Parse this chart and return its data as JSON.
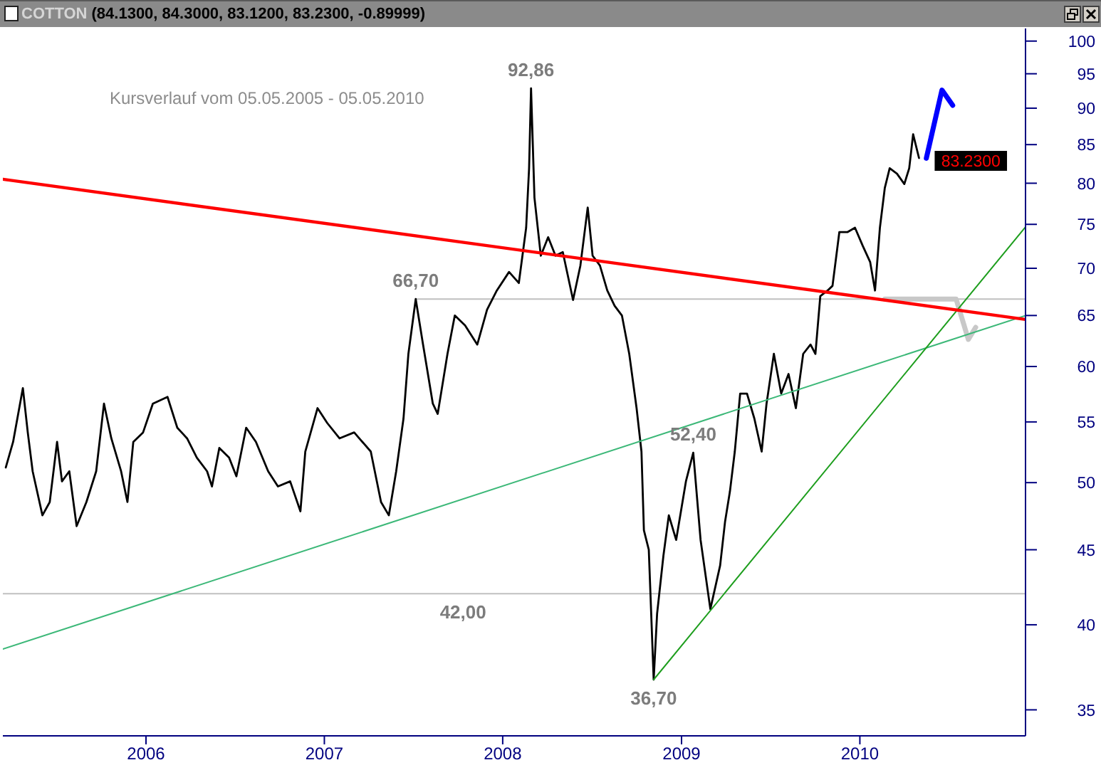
{
  "chart_data": {
    "type": "line",
    "title": "COTTON",
    "subtitle": "(84.1300, 84.3000, 83.1200, 83.2300, -0.89999)",
    "xlim": [
      "2005-03-14",
      "2010-12-06"
    ],
    "xticks": [
      {
        "value": "2006-01-01",
        "label": "2006"
      },
      {
        "value": "2007-01-01",
        "label": "2007"
      },
      {
        "value": "2008-01-01",
        "label": "2008"
      },
      {
        "value": "2009-01-01",
        "label": "2009"
      },
      {
        "value": "2010-01-01",
        "label": "2010"
      }
    ],
    "ylim": [
      33.6,
      102
    ],
    "yticks": [
      35,
      40,
      45,
      50,
      55,
      60,
      65,
      70,
      75,
      80,
      85,
      90,
      95,
      100
    ],
    "log": true,
    "series": [
      {
        "color": "#c0c0c0",
        "x": [
          "2007-07-07",
          "2010-12-06"
        ],
        "values": [
          66.7,
          66.7
        ]
      },
      {
        "color": "#c8c8c8",
        "x": [
          "2010-02-21",
          "2010-07-17",
          "2010-08-11",
          "2010-08-26"
        ],
        "values": [
          66.7,
          66.7,
          62.6,
          63.8
        ]
      },
      {
        "color": "#000000",
        "x": [
          "2005-03-20",
          "2005-04-04",
          "2005-04-24",
          "2005-05-04",
          "2005-05-14",
          "2005-06-03",
          "2005-06-18",
          "2005-07-03",
          "2005-07-13",
          "2005-07-28",
          "2005-08-12",
          "2005-09-01",
          "2005-09-21",
          "2005-10-07",
          "2005-10-22",
          "2005-11-11",
          "2005-11-24",
          "2005-12-06",
          "2005-12-26",
          "2006-01-15",
          "2006-02-14",
          "2006-03-06",
          "2006-03-26",
          "2006-04-15",
          "2006-05-06",
          "2006-05-16",
          "2006-05-31",
          "2006-06-20",
          "2006-07-05",
          "2006-07-25",
          "2006-08-14",
          "2006-09-08",
          "2006-09-28",
          "2006-10-23",
          "2006-11-13",
          "2006-11-23",
          "2006-12-18",
          "2007-01-07",
          "2007-02-01",
          "2007-03-03",
          "2007-04-06",
          "2007-04-27",
          "2007-05-13",
          "2007-05-28",
          "2007-06-12",
          "2007-06-22",
          "2007-07-07",
          "2007-07-22",
          "2007-08-11",
          "2007-08-21",
          "2007-09-10",
          "2007-09-25",
          "2007-10-16",
          "2007-11-10",
          "2007-11-30",
          "2007-12-20",
          "2008-01-14",
          "2008-02-03",
          "2008-02-18",
          "2008-02-24",
          "2008-02-28",
          "2008-03-06",
          "2008-03-19",
          "2008-04-03",
          "2008-04-18",
          "2008-05-03",
          "2008-05-24",
          "2008-06-08",
          "2008-06-23",
          "2008-07-03",
          "2008-07-18",
          "2008-08-02",
          "2008-08-17",
          "2008-09-01",
          "2008-09-16",
          "2008-10-01",
          "2008-10-11",
          "2008-10-16",
          "2008-10-26",
          "2008-11-05",
          "2008-11-12",
          "2008-11-25",
          "2008-12-06",
          "2008-12-21",
          "2009-01-10",
          "2009-01-25",
          "2009-02-09",
          "2009-03-01",
          "2009-03-21",
          "2009-03-31",
          "2009-04-10",
          "2009-04-20",
          "2009-05-01",
          "2009-05-15",
          "2009-05-30",
          "2009-06-14",
          "2009-06-24",
          "2009-07-09",
          "2009-07-24",
          "2009-08-08",
          "2009-08-23",
          "2009-09-07",
          "2009-09-22",
          "2009-10-02",
          "2009-10-12",
          "2009-10-27",
          "2009-11-06",
          "2009-11-20",
          "2009-12-07",
          "2009-12-22",
          "2010-01-07",
          "2010-01-22",
          "2010-02-01",
          "2010-02-11",
          "2010-02-21",
          "2010-03-03",
          "2010-03-18",
          "2010-04-02",
          "2010-04-12",
          "2010-04-20",
          "2010-05-02"
        ],
        "values": [
          51.2,
          53.3,
          58,
          54.1,
          50.9,
          47.5,
          48.5,
          53.3,
          50.1,
          50.9,
          46.7,
          48.5,
          50.9,
          56.6,
          53.6,
          50.9,
          48.5,
          53.3,
          54.1,
          56.6,
          57.2,
          54.5,
          53.6,
          52,
          50.9,
          49.7,
          52.8,
          52,
          50.5,
          54.5,
          53.3,
          50.9,
          49.7,
          50.1,
          47.8,
          52.5,
          56.2,
          54.9,
          53.6,
          54.1,
          52.5,
          48.5,
          47.5,
          50.9,
          55.3,
          61.2,
          66.7,
          62.1,
          56.6,
          55.7,
          61.2,
          65,
          64,
          62.1,
          65.6,
          67.6,
          69.6,
          68.4,
          74.6,
          81.9,
          92.86,
          78.2,
          71.4,
          73.5,
          71.4,
          71.8,
          66.6,
          70.3,
          77,
          71.4,
          70.3,
          67.6,
          66,
          65,
          61.2,
          56.2,
          52.5,
          46.4,
          45,
          36.7,
          40.7,
          44.6,
          47.5,
          45.7,
          50.1,
          52.4,
          45.7,
          41,
          43.9,
          47,
          49.3,
          52.5,
          57.5,
          57.5,
          55.3,
          52.5,
          56.6,
          61.2,
          57.5,
          59.3,
          56.2,
          61.2,
          62.1,
          61.2,
          67,
          67.6,
          68.1,
          74.1,
          74.1,
          74.6,
          72.5,
          70.7,
          67.6,
          74.6,
          79.4,
          81.9,
          81.2,
          79.9,
          81.9,
          86.4,
          83.23
        ],
        "value_labels": [
          null,
          null,
          null,
          null,
          null,
          null,
          null,
          null,
          null,
          null,
          null,
          null,
          null,
          null,
          null,
          null,
          null,
          null,
          null,
          null,
          null,
          null,
          null,
          null,
          null,
          null,
          null,
          null,
          null,
          null,
          null,
          null,
          null,
          null,
          null,
          null,
          null,
          null,
          null,
          null,
          null,
          null,
          null,
          null,
          null,
          null,
          null,
          null,
          null,
          null,
          null,
          null,
          null,
          null,
          null,
          null,
          null,
          null,
          null,
          null,
          null,
          null,
          null,
          null,
          null,
          null,
          null,
          null,
          null,
          null,
          null,
          null,
          null,
          null,
          null,
          null,
          null,
          null,
          null,
          null,
          null,
          null,
          null,
          null,
          null,
          null,
          null,
          null,
          null,
          null,
          null,
          null,
          null,
          null,
          null,
          null,
          null,
          null,
          null,
          null,
          null,
          null,
          null,
          null,
          null,
          null,
          null,
          null,
          null,
          null,
          null,
          null,
          null,
          null,
          null,
          null,
          null,
          null,
          null,
          null,
          "83.2300"
        ]
      },
      {
        "color": "#3cb878",
        "x": [
          "2005-03-14",
          "2010-12-06"
        ],
        "values": [
          38.5,
          65
        ]
      },
      {
        "color": "#1e9e1e",
        "x": [
          "2008-11-05",
          "2010-12-06"
        ],
        "values": [
          36.7,
          74.7
        ]
      },
      {
        "color": "#ff0000",
        "x": [
          "2005-03-14",
          "2010-12-06"
        ],
        "values": [
          80.5,
          64.6
        ]
      },
      {
        "color": "#0000ff",
        "x": [
          "2010-05-17",
          "2010-06-18",
          "2010-07-10"
        ],
        "values": [
          83.2,
          92.6,
          90.4
        ]
      }
    ],
    "ref_lines": [
      {
        "axis": "y",
        "value": 42,
        "label": "42,00",
        "color": "#c0c0c0"
      }
    ],
    "annotations": [
      "Kursverlauf vom 05.05.2005 - 05.05.2010",
      {
        "text": "92,86",
        "x": "2008-02-28",
        "y": 92.86
      },
      {
        "text": "66,70",
        "x": "2007-07-07",
        "y": 66.7
      },
      {
        "text": "52,40",
        "x": "2009-01-25",
        "y": 52.4
      },
      {
        "text": "36,70",
        "x": "2008-11-05",
        "y": 36.7
      }
    ]
  }
}
